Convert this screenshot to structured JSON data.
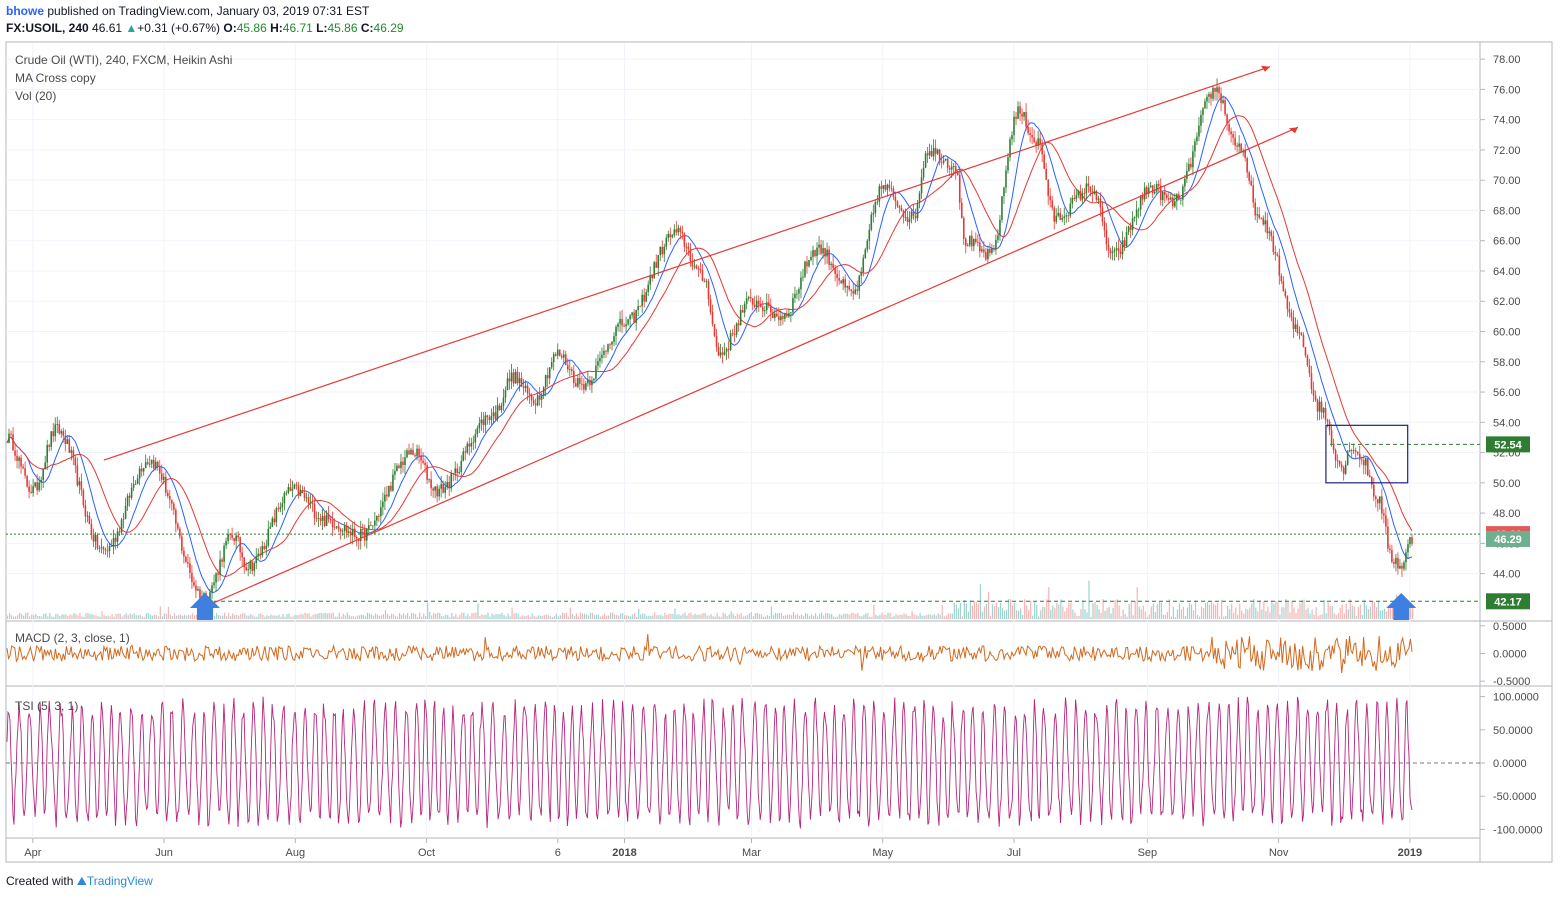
{
  "header": {
    "user": "bhowe",
    "published": "published on TradingView.com, January 03, 2019 07:31 EST",
    "symbol": "FX:USOIL, 240",
    "last": "46.61",
    "change": "+0.31 (+0.67%)",
    "o_label": "O:",
    "o_value": "45.86",
    "h_label": "H:",
    "h_value": "46.71",
    "l_label": "L:",
    "l_value": "45.86",
    "c_label": "C:",
    "c_value": "46.29"
  },
  "legend": {
    "main": "Crude Oil (WTI), 240, FXCM, Heikin Ashi",
    "ma": "MA Cross copy",
    "vol": "Vol (20)",
    "macd": "MACD (2, 3, close, 1)",
    "tsi": "TSI (5, 3, 1)"
  },
  "footer": {
    "created": "Created with",
    "brand": "TradingView"
  },
  "colors": {
    "up": "#2e7d32",
    "down": "#e53935",
    "ma_fast": "#2962ff",
    "ma_slow": "#e53935",
    "channel": "#e53935",
    "macd": "#d2691e",
    "tsi": "#b5267b",
    "level": "#2e7d32",
    "last_badge": "#e05a5a",
    "close_badge": "#6fae8f",
    "box": "#1a237e",
    "arrow": "#3f7fe0"
  },
  "chart_data": [
    {
      "type": "line",
      "name": "price",
      "x_ticks": [
        "Apr",
        "Jun",
        "Aug",
        "Oct",
        "6",
        "2018",
        "Mar",
        "May",
        "Jul",
        "Sep",
        "Nov",
        "2019"
      ],
      "y_ticks": [
        "78.00",
        "76.00",
        "74.00",
        "72.00",
        "70.00",
        "68.00",
        "66.00",
        "64.00",
        "62.00",
        "60.00",
        "58.00",
        "56.00",
        "54.00",
        "52.00",
        "50.00",
        "48.00",
        "46.00",
        "44.00"
      ],
      "ylim": [
        41,
        79
      ],
      "points": [
        [
          "2017-03-20",
          53.0
        ],
        [
          "2017-04-01",
          49.5
        ],
        [
          "2017-04-12",
          53.5
        ],
        [
          "2017-05-04",
          45.5
        ],
        [
          "2017-05-25",
          51.5
        ],
        [
          "2017-06-20",
          42.5
        ],
        [
          "2017-07-03",
          46.5
        ],
        [
          "2017-07-10",
          44.5
        ],
        [
          "2017-07-31",
          49.5
        ],
        [
          "2017-08-16",
          47.5
        ],
        [
          "2017-08-31",
          46.5
        ],
        [
          "2017-09-25",
          52.0
        ],
        [
          "2017-10-06",
          49.5
        ],
        [
          "2017-11-01",
          54.5
        ],
        [
          "2017-11-10",
          57.0
        ],
        [
          "2017-11-20",
          55.5
        ],
        [
          "2017-12-01",
          58.5
        ],
        [
          "2017-12-12",
          56.5
        ],
        [
          "2018-01-01",
          60.5
        ],
        [
          "2018-01-25",
          66.5
        ],
        [
          "2018-02-07",
          63.5
        ],
        [
          "2018-02-14",
          58.5
        ],
        [
          "2018-03-01",
          62.0
        ],
        [
          "2018-03-15",
          61.0
        ],
        [
          "2018-04-01",
          65.5
        ],
        [
          "2018-04-17",
          62.5
        ],
        [
          "2018-05-01",
          69.5
        ],
        [
          "2018-05-15",
          67.5
        ],
        [
          "2018-05-22",
          72.0
        ],
        [
          "2018-06-04",
          71.0
        ],
        [
          "2018-06-08",
          66.0
        ],
        [
          "2018-06-20",
          65.0
        ],
        [
          "2018-07-03",
          74.5
        ],
        [
          "2018-07-12",
          72.5
        ],
        [
          "2018-07-20",
          67.5
        ],
        [
          "2018-08-06",
          69.5
        ],
        [
          "2018-08-16",
          65.0
        ],
        [
          "2018-09-03",
          69.5
        ],
        [
          "2018-09-13",
          68.5
        ],
        [
          "2018-10-03",
          76.0
        ],
        [
          "2018-10-12",
          72.5
        ],
        [
          "2018-10-25",
          67.0
        ],
        [
          "2018-11-10",
          60.0
        ],
        [
          "2018-11-20",
          55.0
        ],
        [
          "2018-12-01",
          51.0
        ],
        [
          "2018-12-05",
          52.5
        ],
        [
          "2018-12-10",
          51.5
        ],
        [
          "2018-12-17",
          49.0
        ],
        [
          "2018-12-24",
          45.0
        ],
        [
          "2018-12-28",
          44.5
        ],
        [
          "2019-01-02",
          46.29
        ]
      ],
      "channel_upper": [
        [
          "2017-05-04",
          51.5
        ],
        [
          "2018-10-28",
          77.5
        ]
      ],
      "channel_lower": [
        [
          "2017-06-23",
          42.0
        ],
        [
          "2018-06-20",
          64.0
        ],
        [
          "2018-11-10",
          73.5
        ]
      ],
      "levels": [
        "52.54",
        "46.61",
        "46.29",
        "42.17"
      ],
      "box": {
        "from": "2018-11-23",
        "to": "2018-12-31",
        "high": 53.8,
        "low": 50.0
      },
      "arrows": [
        "2017-06-20",
        "2018-12-28"
      ]
    },
    {
      "type": "line",
      "name": "MACD",
      "y_ticks": [
        "0.5000",
        "0.0000",
        "-0.5000"
      ],
      "ylim": [
        -0.55,
        0.55
      ]
    },
    {
      "type": "line",
      "name": "TSI",
      "y_ticks": [
        "100.0000",
        "50.0000",
        "0.0000",
        "-50.0000",
        "-100.0000"
      ],
      "ylim": [
        -110,
        110
      ]
    }
  ]
}
